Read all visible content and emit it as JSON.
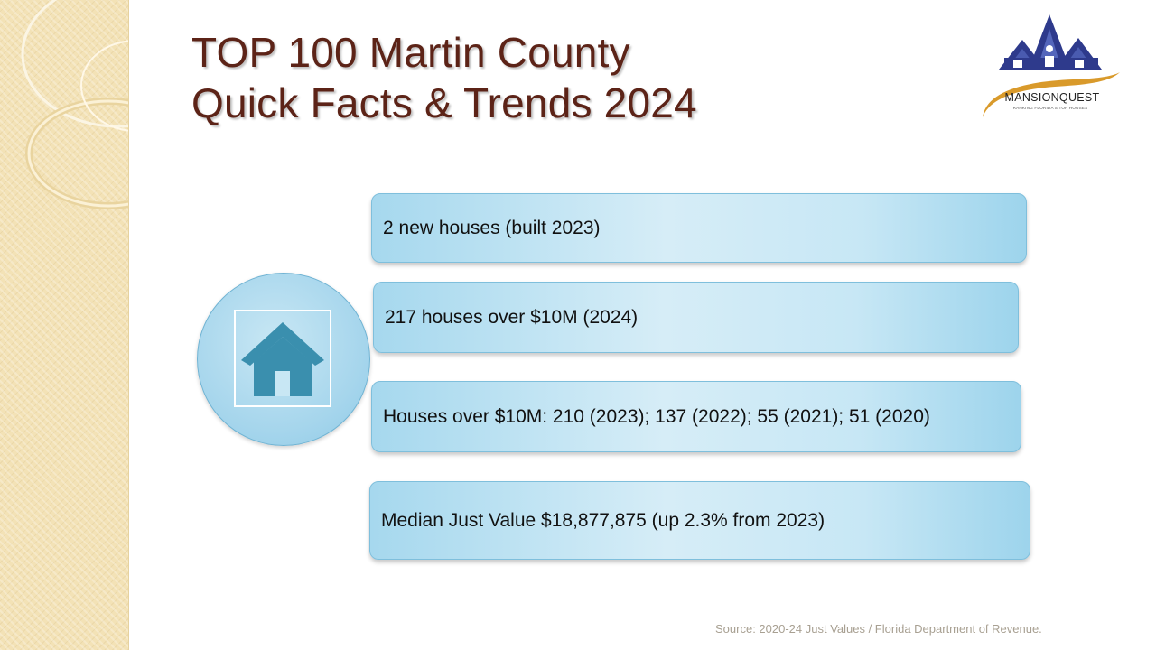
{
  "slide": {
    "title_line_1": "TOP 100 Martin County",
    "title_line_2": "Quick Facts & Trends 2024"
  },
  "logo": {
    "name": "MANSIONQUEST",
    "tagline": "RANKING FLORIDA'S TOP HOUSES"
  },
  "center_icon": "house-icon",
  "facts": [
    {
      "text": "2 new houses (built 2023)"
    },
    {
      "text": "217 houses over $10M (2024)"
    },
    {
      "text": "Houses over $10M: 210 (2023); 137 (2022); 55 (2021); 51 (2020)"
    },
    {
      "text": "Median Just Value $18,877,875 (up 2.3% from 2023)"
    }
  ],
  "source": "Source: 2020-24 Just Values / Florida Department of Revenue.",
  "colors": {
    "title": "#5c2317",
    "box_blue": "#a6d8ee",
    "icon_teal": "#3a8fae",
    "logo_navy": "#2e3a8c",
    "logo_gold": "#d99a2b",
    "band_beige": "#f3e2b6"
  }
}
